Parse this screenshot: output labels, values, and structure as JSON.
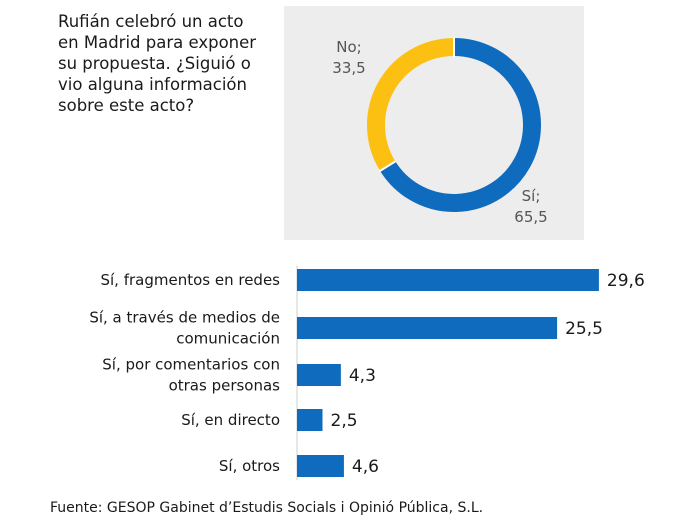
{
  "chart_data": [
    {
      "type": "pie",
      "title": "Rufián celebró un acto en Madrid para exponer su propuesta. ¿Siguió o vio alguna información sobre este acto?",
      "slices": [
        {
          "label": "Sí;",
          "value": 65.5,
          "value_text": "65,5",
          "color": "#0e6bbd"
        },
        {
          "label": "No;",
          "value": 33.5,
          "value_text": "33,5",
          "color": "#fcc012"
        }
      ]
    },
    {
      "type": "bar",
      "orientation": "horizontal",
      "categories": [
        [
          "Sí, fragmentos en redes"
        ],
        [
          "Sí, a través de medios de",
          "comunicación"
        ],
        [
          "Sí, por comentarios con",
          "otras personas"
        ],
        [
          "Sí, en directo"
        ],
        [
          "Sí, otros"
        ]
      ],
      "values": [
        29.6,
        25.5,
        4.3,
        2.5,
        4.6
      ],
      "value_labels": [
        "29,6",
        "25,5",
        "4,3",
        "2,5",
        "4,6"
      ],
      "color": "#0e6bbd"
    }
  ],
  "question": "Rufián celebró un acto en Madrid para exponer su propuesta. ¿Siguió o vio alguna información sobre este acto?",
  "source": "Fuente: GESOP Gabinet d’Estudis Socials i Opinió Pública, S.L."
}
